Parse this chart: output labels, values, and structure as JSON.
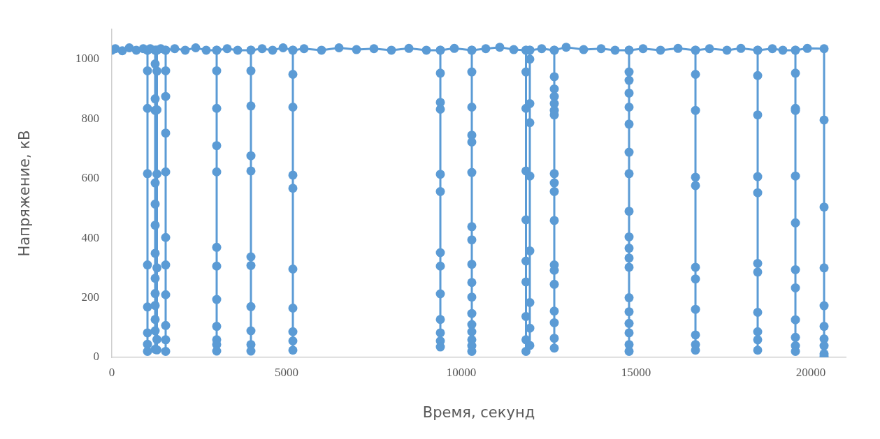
{
  "chart_data": {
    "type": "line",
    "xlabel": "Время, секунд",
    "ylabel": "Напряжение, кВ",
    "xlim": [
      0,
      21000
    ],
    "xticks": [
      0,
      5000,
      10000,
      15000,
      20000
    ],
    "ylim": [
      0,
      1100
    ],
    "yticks": [
      0,
      200,
      400,
      600,
      800,
      1000
    ],
    "grid": false,
    "legend": false,
    "marker": "circle",
    "series": [
      {
        "color": "#5b9bd5",
        "x": [
          0,
          100,
          300,
          500,
          700,
          900,
          1020,
          1020,
          1020,
          1020,
          1020,
          1020,
          1020,
          1020,
          1020,
          1020,
          1100,
          1240,
          1240,
          1240,
          1240,
          1240,
          1240,
          1240,
          1240,
          1240,
          1240,
          1240,
          1240,
          1240,
          1240,
          1240,
          1290,
          1290,
          1290,
          1290,
          1290,
          1290,
          1290,
          1290,
          1400,
          1540,
          1540,
          1540,
          1540,
          1540,
          1540,
          1540,
          1540,
          1540,
          1540,
          1540,
          1540,
          1800,
          2100,
          2400,
          2700,
          3000,
          3000,
          3000,
          3000,
          3000,
          3000,
          3000,
          3000,
          3000,
          3000,
          3000,
          3000,
          3000,
          3300,
          3600,
          3980,
          3980,
          3980,
          3980,
          3980,
          3980,
          3980,
          3980,
          3980,
          3980,
          3980,
          3980,
          4300,
          4600,
          4900,
          5180,
          5180,
          5180,
          5180,
          5180,
          5180,
          5180,
          5180,
          5180,
          5180,
          5180,
          5500,
          6000,
          6500,
          7000,
          7500,
          8000,
          8500,
          9000,
          9400,
          9400,
          9400,
          9400,
          9400,
          9400,
          9400,
          9400,
          9400,
          9400,
          9400,
          9400,
          9400,
          9400,
          9800,
          10300,
          10300,
          10300,
          10300,
          10300,
          10300,
          10300,
          10300,
          10300,
          10300,
          10300,
          10300,
          10300,
          10300,
          10300,
          10300,
          10300,
          10300,
          10700,
          11100,
          11500,
          11850,
          11850,
          11850,
          11850,
          11850,
          11850,
          11850,
          11850,
          11850,
          11850,
          11850,
          11960,
          11960,
          11960,
          11960,
          11960,
          11960,
          11960,
          11960,
          11960,
          11960,
          12300,
          12660,
          12660,
          12660,
          12660,
          12660,
          12660,
          12660,
          12660,
          12660,
          12660,
          12660,
          12660,
          12660,
          12660,
          12660,
          12660,
          12660,
          12660,
          12660,
          13000,
          13500,
          14000,
          14400,
          14800,
          14800,
          14800,
          14800,
          14800,
          14800,
          14800,
          14800,
          14800,
          14800,
          14800,
          14800,
          14800,
          14800,
          14800,
          14800,
          14800,
          14800,
          14800,
          14800,
          15200,
          15700,
          16200,
          16700,
          16700,
          16700,
          16700,
          16700,
          16700,
          16700,
          16700,
          16700,
          16700,
          16700,
          16700,
          17100,
          17600,
          18000,
          18480,
          18480,
          18480,
          18480,
          18480,
          18480,
          18480,
          18480,
          18480,
          18480,
          18480,
          18480,
          18900,
          19200,
          19560,
          19560,
          19560,
          19560,
          19560,
          19560,
          19560,
          19560,
          19560,
          19560,
          19560,
          19560,
          19560,
          19900,
          20380,
          20380,
          20380,
          20380,
          20380,
          20380,
          20380,
          20380,
          20380,
          20380
        ],
        "values": [
          1030,
          1035,
          1028,
          1038,
          1030,
          1035,
          1030,
          961,
          835,
          616,
          310,
          169,
          82,
          44,
          20,
          1030,
          1035,
          1030,
          984,
          867,
          828,
          585,
          514,
          443,
          349,
          265,
          214,
          174,
          127,
          89,
          27,
          1030,
          1030,
          960,
          830,
          615,
          300,
          60,
          25,
          1030,
          1035,
          1030,
          961,
          875,
          752,
          622,
          402,
          310,
          210,
          107,
          59,
          20,
          1030,
          1035,
          1030,
          1038,
          1030,
          1030,
          961,
          835,
          710,
          622,
          369,
          306,
          194,
          104,
          59,
          43,
          21,
          1030,
          1035,
          1030,
          1030,
          961,
          843,
          676,
          625,
          337,
          308,
          170,
          89,
          43,
          21,
          1030,
          1035,
          1030,
          1038,
          1030,
          949,
          839,
          611,
          567,
          296,
          165,
          86,
          55,
          24,
          1030,
          1035,
          1030,
          1038,
          1032,
          1035,
          1030,
          1036,
          1030,
          1030,
          953,
          855,
          832,
          614,
          556,
          351,
          306,
          213,
          127,
          82,
          55,
          35,
          1030,
          1036,
          1030,
          957,
          839,
          745,
          722,
          620,
          438,
          394,
          312,
          251,
          202,
          147,
          110,
          86,
          59,
          39,
          20,
          1030,
          1035,
          1040,
          1032,
          1030,
          957,
          835,
          625,
          461,
          323,
          253,
          137,
          59,
          20,
          1030,
          1030,
          1000,
          851,
          787,
          608,
          357,
          184,
          98,
          40,
          1030,
          1035,
          1030,
          941,
          900,
          875,
          851,
          828,
          813,
          616,
          585,
          556,
          459,
          310,
          292,
          245,
          155,
          116,
          64,
          31,
          1030,
          1040,
          1032,
          1035,
          1030,
          1030,
          957,
          929,
          886,
          839,
          782,
          688,
          616,
          490,
          404,
          366,
          333,
          302,
          200,
          153,
          114,
          82,
          43,
          20,
          1030,
          1035,
          1030,
          1036,
          1030,
          949,
          828,
          604,
          576,
          302,
          263,
          161,
          75,
          43,
          24,
          1030,
          1035,
          1030,
          1036,
          1030,
          945,
          813,
          606,
          552,
          315,
          286,
          151,
          86,
          59,
          24,
          1030,
          1035,
          1030,
          1030,
          953,
          835,
          828,
          608,
          451,
          294,
          233,
          126,
          67,
          39,
          20,
          1030,
          1036,
          1035,
          796,
          504,
          300,
          173,
          104,
          62,
          39,
          12,
          3
        ]
      }
    ]
  }
}
